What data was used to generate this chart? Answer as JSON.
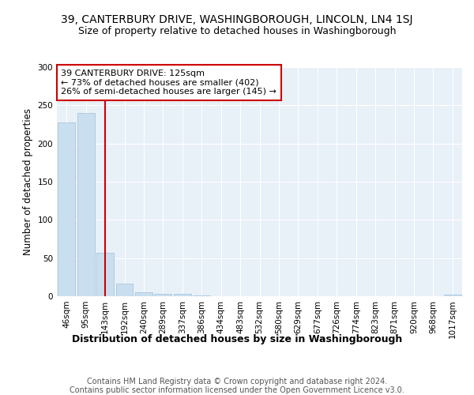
{
  "title_line1": "39, CANTERBURY DRIVE, WASHINGBOROUGH, LINCOLN, LN4 1SJ",
  "title_line2": "Size of property relative to detached houses in Washingborough",
  "xlabel": "Distribution of detached houses by size in Washingborough",
  "ylabel": "Number of detached properties",
  "bin_labels": [
    "46sqm",
    "95sqm",
    "143sqm",
    "192sqm",
    "240sqm",
    "289sqm",
    "337sqm",
    "386sqm",
    "434sqm",
    "483sqm",
    "532sqm",
    "580sqm",
    "629sqm",
    "677sqm",
    "726sqm",
    "774sqm",
    "823sqm",
    "871sqm",
    "920sqm",
    "968sqm",
    "1017sqm"
  ],
  "bar_heights": [
    228,
    240,
    57,
    17,
    5,
    3,
    3,
    1,
    0,
    0,
    0,
    0,
    0,
    0,
    0,
    0,
    0,
    0,
    0,
    0,
    2
  ],
  "bar_color": "#c9dff0",
  "bar_edge_color": "#a0bfd8",
  "vline_color": "#cc0000",
  "annotation_text": "39 CANTERBURY DRIVE: 125sqm\n← 73% of detached houses are smaller (402)\n26% of semi-detached houses are larger (145) →",
  "annotation_box_color": "#ffffff",
  "annotation_box_edge": "#cc0000",
  "ylim": [
    0,
    300
  ],
  "yticks": [
    0,
    50,
    100,
    150,
    200,
    250,
    300
  ],
  "bg_color": "#e8f0f8",
  "footer_line1": "Contains HM Land Registry data © Crown copyright and database right 2024.",
  "footer_line2": "Contains public sector information licensed under the Open Government Licence v3.0.",
  "title_fontsize": 10,
  "subtitle_fontsize": 9,
  "xlabel_fontsize": 9,
  "ylabel_fontsize": 8.5,
  "tick_fontsize": 7.5,
  "annotation_fontsize": 8,
  "footer_fontsize": 7
}
